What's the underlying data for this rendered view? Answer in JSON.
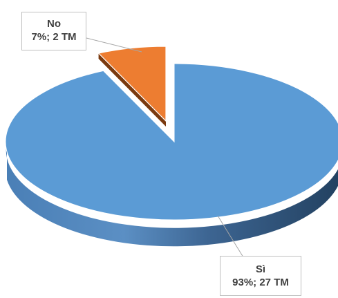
{
  "chart_data": {
    "type": "pie",
    "style": "3d-exploded",
    "categories": [
      "No",
      "Sì"
    ],
    "percent_labels": [
      "7%; 2 TM",
      "93%; 27 TM"
    ],
    "values": [
      2,
      27
    ],
    "percentages": [
      7,
      93
    ],
    "colors": {
      "No": "#ed7d31",
      "No_side": "#7a3a0f",
      "Si": "#5b9bd5",
      "Si_side_dark": "#2a4a6b",
      "Si_side_light": "#5a86b6",
      "callout_border": "#bfbfbf",
      "text": "#404040"
    }
  }
}
